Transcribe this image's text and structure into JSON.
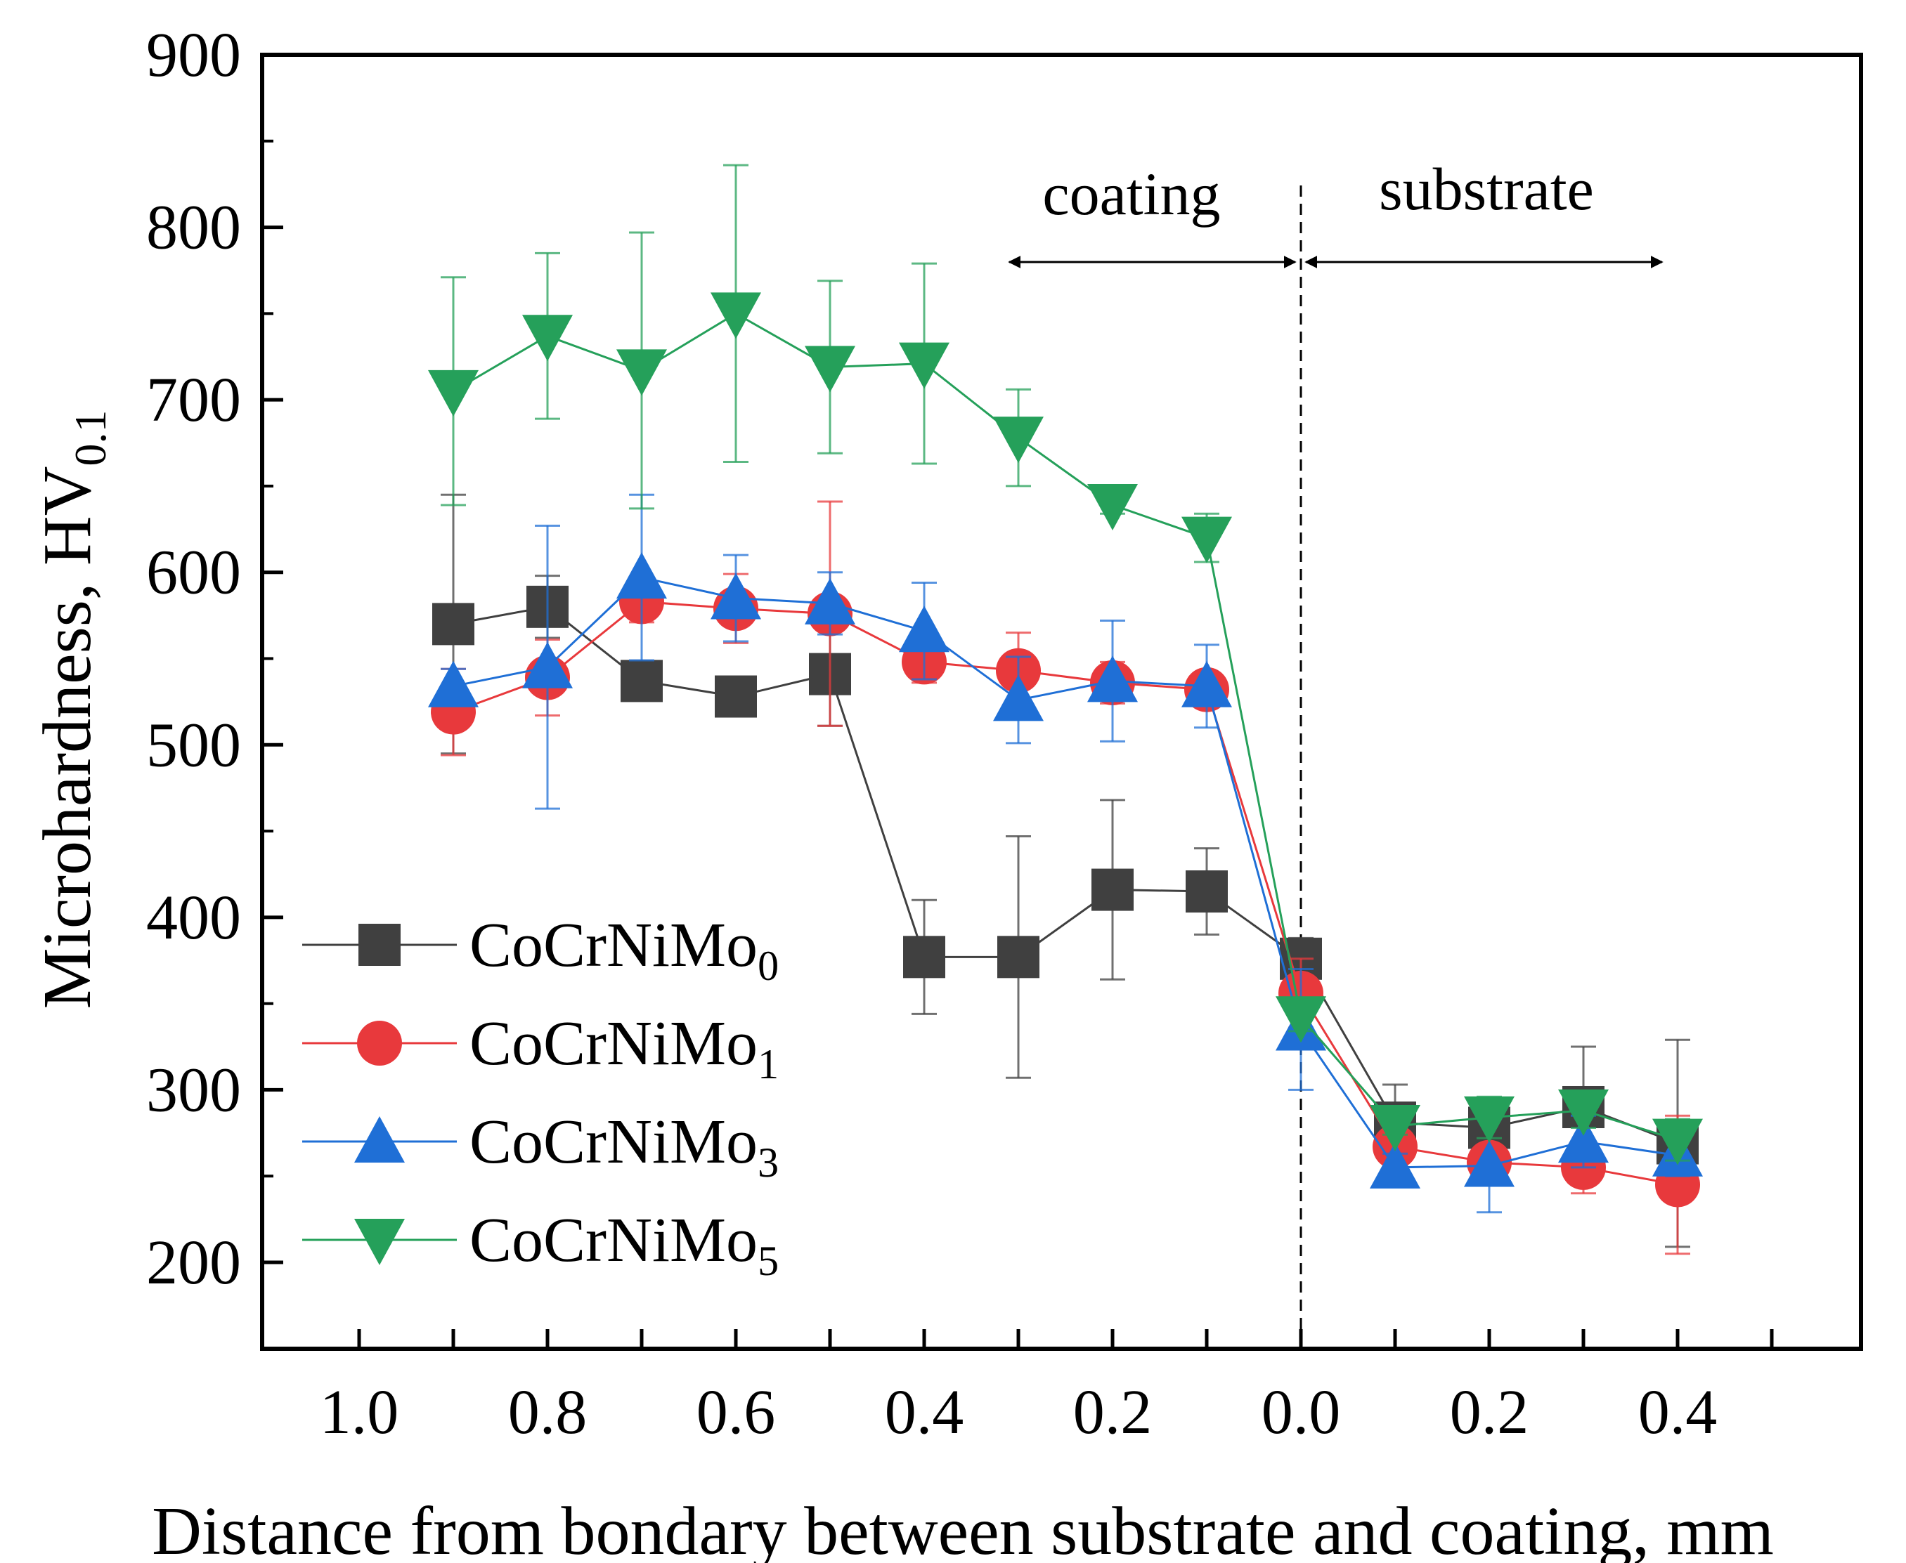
{
  "chart_data": {
    "type": "line",
    "title": "",
    "xlabel": "Distance from bondary between substrate and coating, mm",
    "ylabel": {
      "main": "Microhardness, HV",
      "sub": "0.1"
    },
    "ylim": [
      200,
      900
    ],
    "yticks": [
      200,
      300,
      400,
      500,
      600,
      700,
      800,
      900
    ],
    "x_positions": [
      -0.9,
      -0.8,
      -0.7,
      -0.6,
      -0.5,
      -0.4,
      -0.3,
      -0.2,
      -0.1,
      0.0,
      0.1,
      0.2,
      0.3,
      0.4
    ],
    "x_ticks": [
      {
        "x": -1.0,
        "label": "1.0"
      },
      {
        "x": -0.8,
        "label": "0.8"
      },
      {
        "x": -0.6,
        "label": "0.6"
      },
      {
        "x": -0.4,
        "label": "0.4"
      },
      {
        "x": -0.2,
        "label": "0.2"
      },
      {
        "x": 0.0,
        "label": "0.0"
      },
      {
        "x": 0.2,
        "label": "0.2"
      },
      {
        "x": 0.4,
        "label": "0.4"
      }
    ],
    "annotations": {
      "coating": "coating",
      "substrate": "substrate"
    },
    "legend_position": "left",
    "series": [
      {
        "name": "CoCrNiMo",
        "sub": "0",
        "color": "#404040",
        "marker": "square",
        "values": [
          570,
          580,
          537,
          528,
          541,
          377,
          377,
          416,
          415,
          376,
          281,
          278,
          290,
          269
        ],
        "errors": [
          75,
          18,
          8,
          5,
          30,
          33,
          70,
          52,
          25,
          12,
          22,
          6,
          35,
          60
        ]
      },
      {
        "name": "CoCrNiMo",
        "sub": "1",
        "color": "#e8393c",
        "marker": "circle",
        "values": [
          519,
          539,
          583,
          579,
          576,
          548,
          543,
          536,
          532,
          356,
          267,
          258,
          255,
          245
        ],
        "errors": [
          25,
          22,
          12,
          20,
          65,
          12,
          22,
          12,
          10,
          20,
          8,
          8,
          15,
          40
        ]
      },
      {
        "name": "CoCrNiMo",
        "sub": "3",
        "color": "#1f6fd6",
        "marker": "triangle-up",
        "values": [
          534,
          545,
          597,
          585,
          582,
          566,
          526,
          537,
          534,
          335,
          255,
          256,
          270,
          262
        ],
        "errors": [
          10,
          82,
          48,
          25,
          18,
          28,
          25,
          35,
          24,
          35,
          8,
          27,
          15,
          12
        ]
      },
      {
        "name": "CoCrNiMo",
        "sub": "5",
        "color": "#25a05a",
        "marker": "triangle-down",
        "values": [
          705,
          737,
          717,
          750,
          719,
          721,
          678,
          639,
          620,
          342,
          279,
          284,
          288,
          271
        ],
        "errors": [
          66,
          48,
          80,
          86,
          50,
          58,
          28,
          5,
          14,
          8,
          5,
          12,
          10,
          12
        ]
      }
    ]
  }
}
